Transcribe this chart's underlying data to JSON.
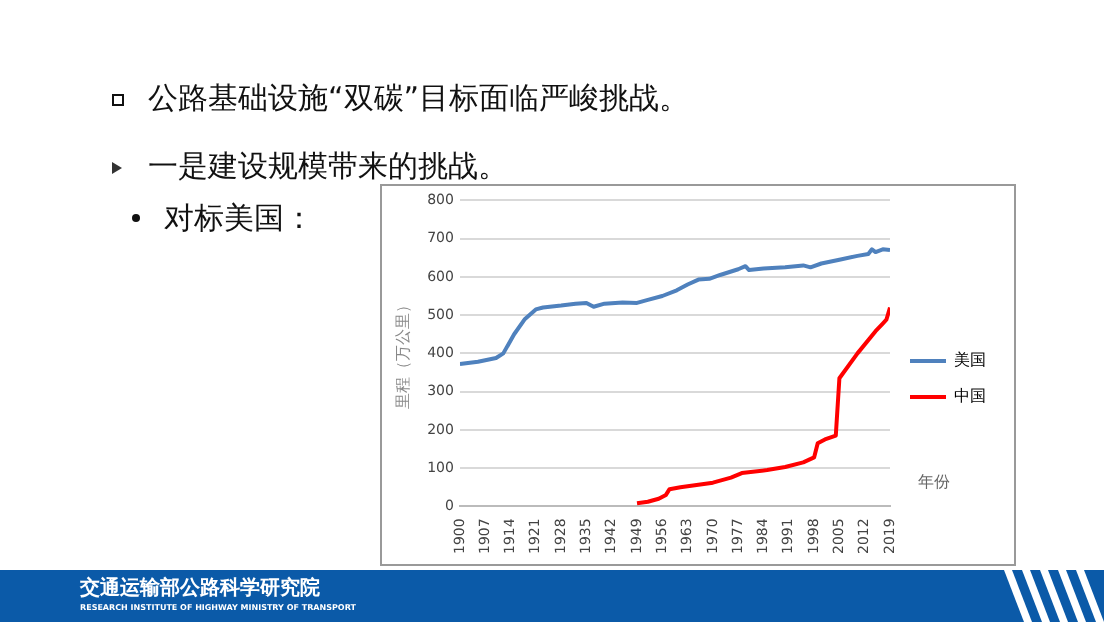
{
  "chart_data": {
    "type": "line",
    "title": "公路基础设施“双碳”目标面临严峻挑战。",
    "subtitle": "一是建设规模带来的挑战。",
    "annotations": [
      "对标美国：",
      "交通运输部公路科学研究院",
      "RESEARCH INSTITUTE OF HIGHWAY MINISTRY OF TRANSPORT"
    ],
    "xlabel": "年份",
    "ylabel": "里程（万公里）",
    "xlim": [
      1900,
      2019
    ],
    "xticks": [
      1900,
      1907,
      1914,
      1921,
      1928,
      1935,
      1942,
      1949,
      1956,
      1963,
      1970,
      1977,
      1984,
      1991,
      1998,
      2005,
      2012,
      2019
    ],
    "ylim": [
      0,
      800
    ],
    "yticks": [
      0,
      100,
      200,
      300,
      400,
      500,
      600,
      700,
      800
    ],
    "grid": "y",
    "legend": "right",
    "marker": "none",
    "line_style": "solid",
    "series": [
      {
        "name": "美国",
        "color": "#4f81bd",
        "x": [
          1900,
          1905,
          1910,
          1912,
          1915,
          1918,
          1921,
          1923,
          1928,
          1932,
          1935,
          1937,
          1940,
          1945,
          1949,
          1952,
          1956,
          1960,
          1963,
          1966,
          1969,
          1972,
          1977,
          1979,
          1980,
          1984,
          1990,
          1995,
          1997,
          2000,
          2005,
          2010,
          2013,
          2014,
          2015,
          2017,
          2019
        ],
        "values": [
          372,
          378,
          388,
          400,
          450,
          490,
          515,
          520,
          525,
          530,
          532,
          522,
          530,
          533,
          532,
          540,
          550,
          565,
          580,
          593,
          595,
          605,
          620,
          628,
          618,
          622,
          625,
          630,
          625,
          635,
          645,
          655,
          660,
          672,
          665,
          672,
          670
        ]
      },
      {
        "name": "中国",
        "color": "#ff0000",
        "x": [
          1949,
          1952,
          1955,
          1957,
          1958,
          1961,
          1965,
          1970,
          1975,
          1978,
          1985,
          1990,
          1995,
          1998,
          1999,
          2001,
          2004,
          2005,
          2006,
          2010,
          2015,
          2017,
          2018,
          2019
        ],
        "values": [
          8,
          12,
          20,
          30,
          45,
          50,
          55,
          62,
          75,
          87,
          95,
          103,
          115,
          128,
          165,
          175,
          185,
          335,
          348,
          400,
          458,
          478,
          488,
          520
        ]
      }
    ]
  }
}
